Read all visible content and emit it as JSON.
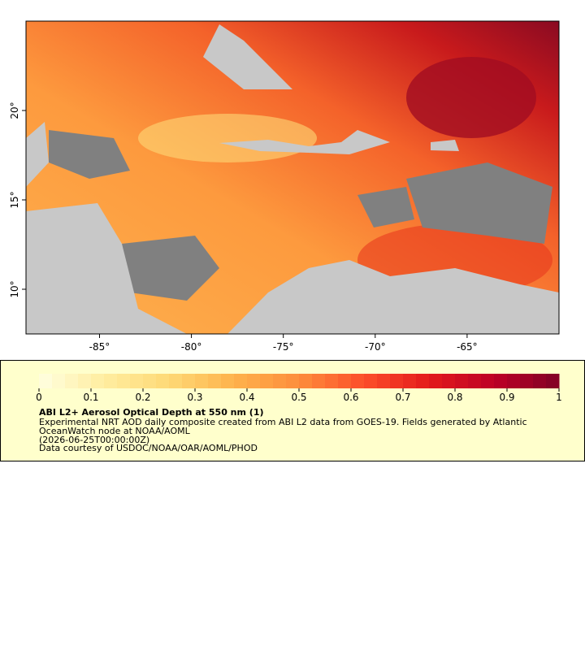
{
  "map": {
    "xlim": [
      -89,
      -60
    ],
    "ylim": [
      7.5,
      25
    ],
    "xticks": [
      {
        "value": -85,
        "label": "-85°"
      },
      {
        "value": -80,
        "label": "-80°"
      },
      {
        "value": -75,
        "label": "-75°"
      },
      {
        "value": -70,
        "label": "-70°"
      },
      {
        "value": -65,
        "label": "-65°"
      }
    ],
    "yticks": [
      {
        "value": 10,
        "label": "10°"
      },
      {
        "value": 15,
        "label": "15°"
      },
      {
        "value": 20,
        "label": "20°"
      }
    ]
  },
  "legend": {
    "colorbar": {
      "lim": [
        0,
        1
      ],
      "ticks": [
        0,
        0.1,
        0.2,
        0.3,
        0.4,
        0.5,
        0.6,
        0.7,
        0.8,
        0.9,
        1
      ],
      "colors": [
        "#ffffe0",
        "#ffeda0",
        "#fed976",
        "#feb24c",
        "#fd8d3c",
        "#fc4e2a",
        "#e31a1c",
        "#bd0026",
        "#800026"
      ]
    },
    "title": "ABI L2+ Aerosol Optical Depth at 550 nm (1)",
    "lines": [
      "Experimental NRT AOD daily composite created from ABI L2 data from GOES-19. Fields generated by Atlantic",
      "OceanWatch node at NOAA/AOML",
      "(2026-06-25T00:00:00Z)",
      "Data courtesy of USDOC/NOAA/OAR/AOML/PHOD"
    ]
  }
}
